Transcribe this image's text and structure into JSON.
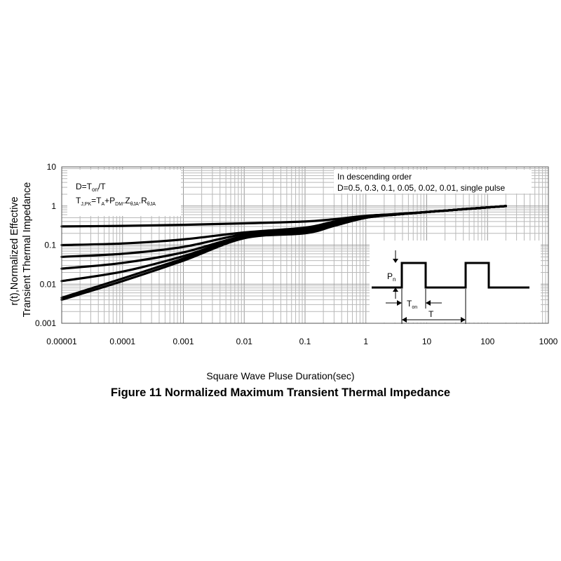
{
  "chart_data": {
    "type": "line",
    "title": "Figure 11 Normalized Maximum Transient Thermal Impedance",
    "xlabel": "Square Wave Pluse Duration(sec)",
    "ylabel": [
      "r(t),Normalized Effective",
      "Transient Thermal Impedance"
    ],
    "x_scale": "log",
    "y_scale": "log",
    "xlim": [
      1e-05,
      1000
    ],
    "ylim": [
      0.001,
      10
    ],
    "x_ticks": [
      "0.00001",
      "0.0001",
      "0.001",
      "0.01",
      "0.1",
      "1",
      "10",
      "100",
      "1000"
    ],
    "y_ticks": [
      "10",
      "1",
      "0.1",
      "0.01",
      "0.001"
    ],
    "grid": true,
    "annotation_formula": {
      "line1": {
        "base": "D=T",
        "sub": "on",
        "tail": "/T"
      },
      "line2": [
        {
          "text": "T",
          "sub": "J,PK"
        },
        {
          "text": "=T",
          "sub": "A"
        },
        {
          "text": "+P",
          "sub": "DM"
        },
        {
          "text": ".Z",
          "sub": "θJA"
        },
        {
          "text": ".R",
          "sub": "θJA"
        }
      ]
    },
    "annotation_order": {
      "line1": "In descending order",
      "line2": "D=0.5, 0.3, 0.1, 0.05, 0.02, 0.01, single pulse"
    },
    "inset_labels": {
      "pm": "P",
      "pm_sub": "n",
      "ton": "T",
      "ton_sub": "on",
      "t": "T"
    },
    "series": [
      {
        "name": "D=0.5",
        "x": [
          1e-05,
          0.0001,
          0.001,
          0.01,
          0.1,
          0.3,
          1,
          3,
          10,
          30,
          100,
          200
        ],
        "y": [
          0.3,
          0.31,
          0.33,
          0.36,
          0.4,
          0.46,
          0.56,
          0.62,
          0.7,
          0.8,
          0.92,
          1.0
        ]
      },
      {
        "name": "D=0.3",
        "x": [
          1e-05,
          0.0001,
          0.001,
          0.01,
          0.1,
          0.3,
          1,
          3,
          10,
          30,
          100,
          200
        ],
        "y": [
          0.1,
          0.11,
          0.14,
          0.21,
          0.28,
          0.4,
          0.55,
          0.62,
          0.7,
          0.8,
          0.92,
          1.0
        ]
      },
      {
        "name": "D=0.1",
        "x": [
          1e-05,
          0.0001,
          0.001,
          0.01,
          0.1,
          0.3,
          1,
          3,
          10,
          30,
          100,
          200
        ],
        "y": [
          0.05,
          0.06,
          0.09,
          0.19,
          0.25,
          0.36,
          0.53,
          0.61,
          0.7,
          0.8,
          0.92,
          1.0
        ]
      },
      {
        "name": "D=0.05",
        "x": [
          1e-05,
          0.0001,
          0.001,
          0.01,
          0.1,
          0.3,
          1,
          3,
          10,
          30,
          100,
          200
        ],
        "y": [
          0.025,
          0.035,
          0.065,
          0.17,
          0.23,
          0.34,
          0.52,
          0.6,
          0.7,
          0.8,
          0.92,
          1.0
        ]
      },
      {
        "name": "D=0.02",
        "x": [
          1e-05,
          0.0001,
          0.001,
          0.01,
          0.1,
          0.3,
          1,
          3,
          10,
          30,
          100,
          200
        ],
        "y": [
          0.012,
          0.021,
          0.052,
          0.16,
          0.22,
          0.33,
          0.51,
          0.6,
          0.7,
          0.8,
          0.92,
          1.0
        ]
      },
      {
        "name": "D=0.01",
        "x": [
          1e-05,
          0.0001,
          0.001,
          0.01,
          0.1,
          0.3,
          1,
          3,
          10,
          30,
          100,
          200
        ],
        "y": [
          0.0045,
          0.014,
          0.045,
          0.155,
          0.21,
          0.32,
          0.5,
          0.6,
          0.7,
          0.8,
          0.92,
          1.0
        ]
      },
      {
        "name": "single pulse",
        "x": [
          1e-05,
          0.0001,
          0.001,
          0.01,
          0.1,
          0.3,
          1,
          3,
          10,
          30,
          100,
          200
        ],
        "y": [
          0.004,
          0.012,
          0.04,
          0.15,
          0.2,
          0.31,
          0.5,
          0.6,
          0.7,
          0.8,
          0.92,
          1.0
        ]
      }
    ]
  }
}
